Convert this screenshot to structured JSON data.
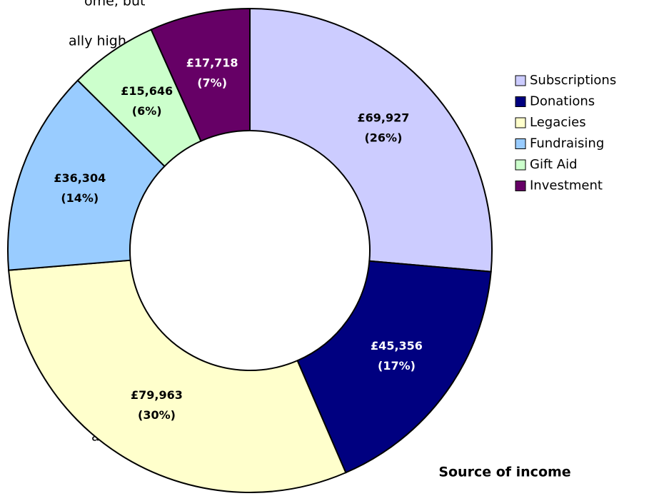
{
  "page_text": [
    "ome, but",
    "ally high.",
    "e",
    "ance"
  ],
  "chart_data": {
    "type": "donut",
    "title": "Source of income",
    "categories": [
      "Subscriptions",
      "Donations",
      "Legacies",
      "Fundraising",
      "Gift Aid",
      "Investment"
    ],
    "values": [
      69927,
      45356,
      79963,
      36304,
      15646,
      17718
    ],
    "value_labels": [
      "£69,927",
      "£45,356",
      "£79,963",
      "£36,304",
      "£15,646",
      "£17,718"
    ],
    "percent_labels": [
      "(26%)",
      "(17%)",
      "(30%)",
      "(14%)",
      "(6%)",
      "(7%)"
    ],
    "colors": [
      "#ccccff",
      "#000080",
      "#ffffcc",
      "#99ccff",
      "#ccffcc",
      "#660066"
    ],
    "legend": "right"
  }
}
